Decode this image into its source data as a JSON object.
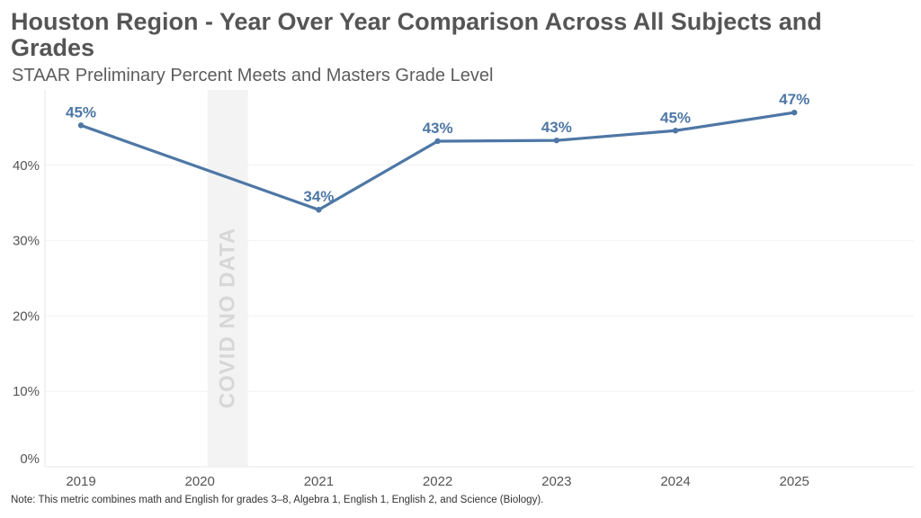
{
  "header": {
    "title": "Houston Region - Year Over Year Comparison Across All Subjects and Grades",
    "subtitle": "STAAR Preliminary Percent Meets and Masters Grade Level"
  },
  "footer": {
    "note": "Note: This metric combines math and English for grades 3–8, Algebra 1, English 1, English 2, and Science (Biology)."
  },
  "colors": {
    "line": "#4e77a5",
    "covid_band": "#f3f3f3",
    "gridline": "#f2f2f2"
  },
  "chart_data": {
    "type": "line",
    "title": "Houston Region - Year Over Year Comparison Across All Subjects and Grades",
    "subtitle": "STAAR Preliminary Percent Meets and Masters Grade Level",
    "categories": [
      "2019",
      "2020",
      "2021",
      "2022",
      "2023",
      "2024",
      "2025"
    ],
    "values": [
      45.3,
      null,
      34.1,
      43.2,
      43.3,
      44.6,
      47.0
    ],
    "data_labels": [
      "45%",
      null,
      "34%",
      "43%",
      "43%",
      "45%",
      "47%"
    ],
    "y_ticks": [
      0,
      10,
      20,
      30,
      40
    ],
    "y_tick_labels": [
      "0%",
      "10%",
      "20%",
      "30%",
      "40%"
    ],
    "ylim": [
      0,
      50
    ],
    "grid": "horizontal",
    "legend": "none",
    "annotations": [
      {
        "category": "2020",
        "text": "COVID NO DATA"
      }
    ]
  }
}
